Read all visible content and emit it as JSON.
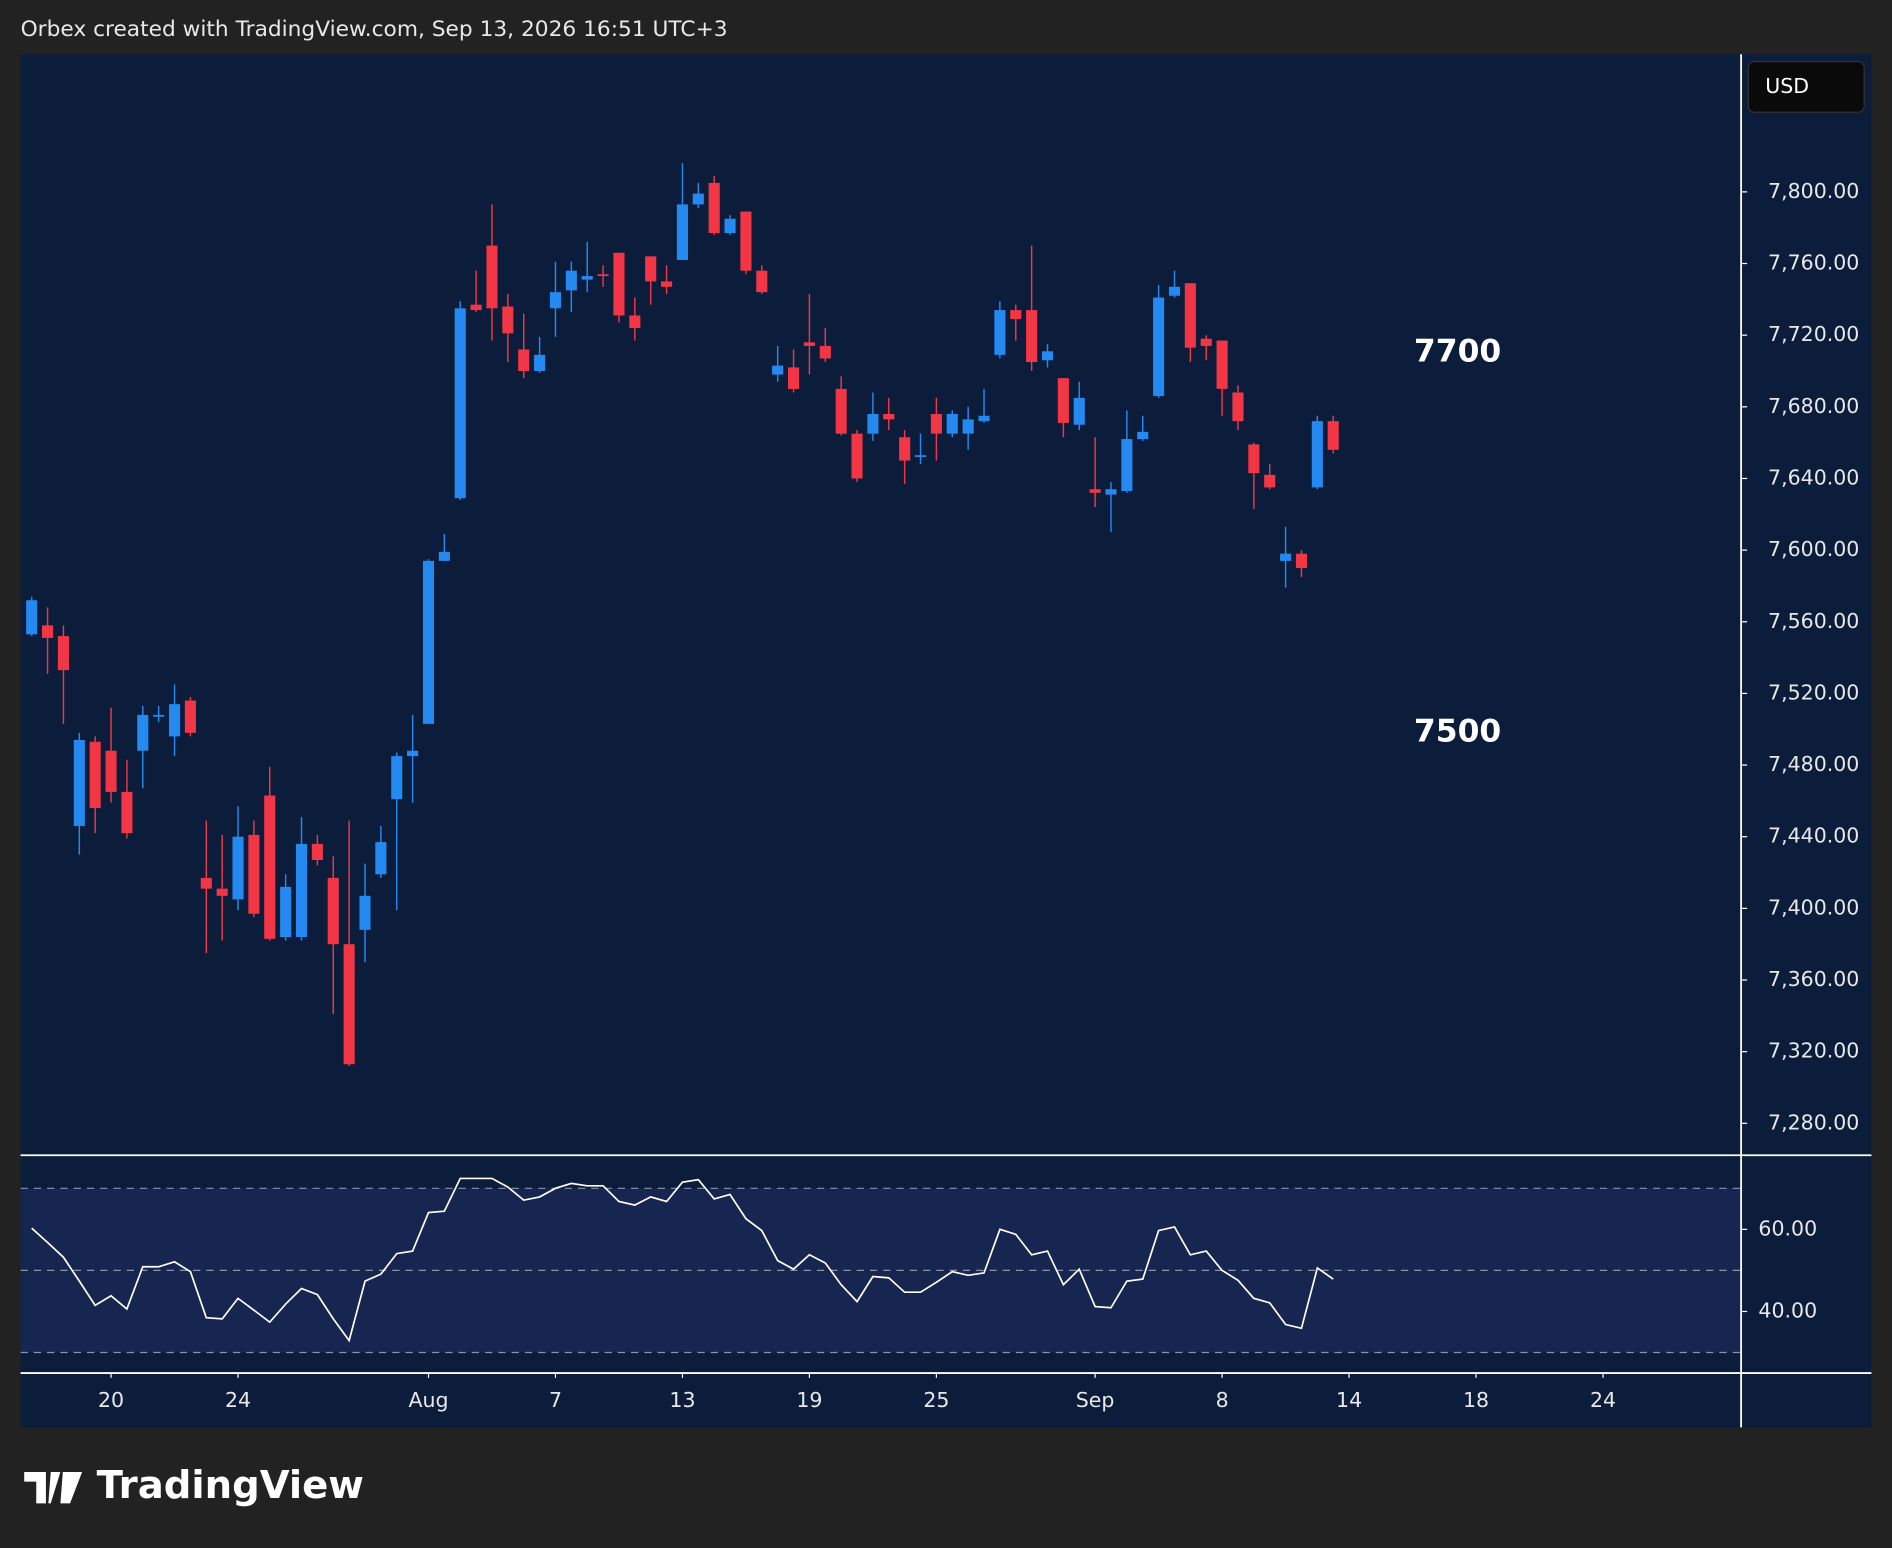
{
  "header": {
    "text": "Orbex created with TradingView.com, Sep 13, 2026 16:51 UTC+3"
  },
  "currency": "USD",
  "logo": "TradingView",
  "chart_data": {
    "type": "candlestick",
    "up_color": "#2489f0",
    "down_color": "#f23645",
    "annotations": [
      "7700",
      "7500"
    ],
    "open": [
      7553,
      7558,
      7552,
      7446,
      7493,
      7488,
      7465,
      7488,
      7507,
      7496,
      7516,
      7417,
      7411,
      7405,
      7441,
      7463,
      7384,
      7384,
      7436,
      7417,
      7380,
      7388,
      7419,
      7461,
      7485,
      7503,
      7594,
      7629,
      7737,
      7770,
      7736,
      7712,
      7700,
      7735,
      7745,
      7751,
      7754,
      7766,
      7731,
      7764,
      7750,
      7762,
      7793,
      7805,
      7777,
      7789,
      7756,
      7698,
      7702,
      7716,
      7714,
      7690,
      7665,
      7665,
      7676,
      7663,
      7652,
      7676,
      7665,
      7665,
      7672,
      7709,
      7734,
      7734,
      7706,
      7696,
      7670,
      7634,
      7631,
      7633,
      7662,
      7686,
      7742,
      7749,
      7718,
      7717,
      7688,
      7659,
      7642,
      7594,
      7598,
      7635,
      7672
    ],
    "high": [
      7574,
      7568,
      7558,
      7498,
      7496,
      7512,
      7483,
      7513,
      7513,
      7525,
      7518,
      7449,
      7441,
      7457,
      7449,
      7479,
      7419,
      7451,
      7441,
      7429,
      7449,
      7425,
      7446,
      7487,
      7508,
      7595,
      7609,
      7739,
      7756,
      7793,
      7743,
      7732,
      7719,
      7761,
      7761,
      7772,
      7759,
      7766,
      7741,
      7764,
      7759,
      7816,
      7805,
      7809,
      7787,
      7789,
      7759,
      7714,
      7712,
      7743,
      7724,
      7697,
      7667,
      7688,
      7685,
      7667,
      7665,
      7685,
      7678,
      7680,
      7690,
      7739,
      7737,
      7770,
      7715,
      7696,
      7694,
      7663,
      7638,
      7678,
      7675,
      7748,
      7756,
      7749,
      7720,
      7717,
      7692,
      7660,
      7648,
      7613,
      7600,
      7675,
      7675
    ],
    "low": [
      7552,
      7531,
      7503,
      7430,
      7442,
      7459,
      7439,
      7467,
      7504,
      7485,
      7496,
      7375,
      7382,
      7399,
      7395,
      7382,
      7382,
      7382,
      7424,
      7341,
      7312,
      7370,
      7417,
      7399,
      7459,
      7503,
      7594,
      7628,
      7733,
      7717,
      7705,
      7696,
      7699,
      7719,
      7733,
      7744,
      7747,
      7727,
      7717,
      7737,
      7743,
      7762,
      7791,
      7776,
      7776,
      7754,
      7743,
      7694,
      7688,
      7698,
      7705,
      7664,
      7638,
      7661,
      7667,
      7637,
      7648,
      7650,
      7663,
      7656,
      7671,
      7707,
      7717,
      7700,
      7702,
      7663,
      7667,
      7624,
      7610,
      7632,
      7661,
      7685,
      7741,
      7705,
      7706,
      7675,
      7667,
      7623,
      7634,
      7579,
      7585,
      7634,
      7654
    ],
    "close": [
      7572,
      7551,
      7533,
      7494,
      7456,
      7465,
      7442,
      7508,
      7508,
      7514,
      7498,
      7411,
      7407,
      7440,
      7397,
      7383,
      7412,
      7436,
      7427,
      7380,
      7313,
      7407,
      7437,
      7485,
      7488,
      7594,
      7599,
      7735,
      7734,
      7735,
      7721,
      7700,
      7709,
      7744,
      7756,
      7753,
      7753,
      7731,
      7724,
      7750,
      7747,
      7793,
      7799,
      7777,
      7785,
      7756,
      7744,
      7703,
      7690,
      7714,
      7707,
      7665,
      7640,
      7676,
      7673,
      7650,
      7653,
      7665,
      7676,
      7673,
      7675,
      7734,
      7729,
      7705,
      7711,
      7671,
      7685,
      7632,
      7634,
      7662,
      7666,
      7741,
      7747,
      7713,
      7714,
      7690,
      7672,
      7643,
      7635,
      7598,
      7590,
      7672,
      7656
    ],
    "xlim": [
      -0.7,
      107.7
    ],
    "xticks": [
      {
        "value": 5,
        "label": "20"
      },
      {
        "value": 13,
        "label": "24"
      },
      {
        "value": 25,
        "label": "Aug"
      },
      {
        "value": 33,
        "label": "7"
      },
      {
        "value": 41,
        "label": "13"
      },
      {
        "value": 49,
        "label": "19"
      },
      {
        "value": 57,
        "label": "25"
      },
      {
        "value": 67,
        "label": "Sep"
      },
      {
        "value": 75,
        "label": "8"
      },
      {
        "value": 83,
        "label": "14"
      },
      {
        "value": 91,
        "label": "18"
      },
      {
        "value": 99,
        "label": "24"
      }
    ],
    "ylim": [
      7262.5,
      7876.8
    ],
    "yticks": [
      {
        "value": 7800,
        "label": "7,800.00"
      },
      {
        "value": 7760,
        "label": "7,760.00"
      },
      {
        "value": 7720,
        "label": "7,720.00"
      },
      {
        "value": 7680,
        "label": "7,680.00"
      },
      {
        "value": 7640,
        "label": "7,640.00"
      },
      {
        "value": 7600,
        "label": "7,600.00"
      },
      {
        "value": 7560,
        "label": "7,560.00"
      },
      {
        "value": 7520,
        "label": "7,520.00"
      },
      {
        "value": 7480,
        "label": "7,480.00"
      },
      {
        "value": 7440,
        "label": "7,440.00"
      },
      {
        "value": 7400,
        "label": "7,400.00"
      },
      {
        "value": 7360,
        "label": "7,360.00"
      },
      {
        "value": 7320,
        "label": "7,320.00"
      },
      {
        "value": 7280,
        "label": "7,280.00"
      }
    ],
    "rsi": {
      "color": "#ffffff",
      "values": [
        60.3,
        56.8,
        53.2,
        47.4,
        41.5,
        43.8,
        40.6,
        50.9,
        50.9,
        52.1,
        49.7,
        38.5,
        38.2,
        43.2,
        40.3,
        37.4,
        41.8,
        45.6,
        44.1,
        38.2,
        32.9,
        47.4,
        49.1,
        54.1,
        54.7,
        64.1,
        64.4,
        72.4,
        72.4,
        72.4,
        70.3,
        67.1,
        67.9,
        70.0,
        71.2,
        70.6,
        70.6,
        66.8,
        65.9,
        67.9,
        66.8,
        71.5,
        72.1,
        67.4,
        68.5,
        62.6,
        59.7,
        52.4,
        50.3,
        53.8,
        51.8,
        46.5,
        42.4,
        48.5,
        48.2,
        44.7,
        44.7,
        47.1,
        49.7,
        48.8,
        49.4,
        60.0,
        58.8,
        53.8,
        54.7,
        46.5,
        50.3,
        41.2,
        40.9,
        47.4,
        47.9,
        59.7,
        60.6,
        53.8,
        54.7,
        50.0,
        47.6,
        43.2,
        42.1,
        36.8,
        35.9,
        50.6,
        47.9
      ],
      "ylim": [
        25,
        77.9
      ],
      "yticks": [
        {
          "value": 60,
          "label": "60.00"
        },
        {
          "value": 40,
          "label": "40.00"
        }
      ],
      "levels": [
        30,
        50,
        70
      ]
    }
  }
}
